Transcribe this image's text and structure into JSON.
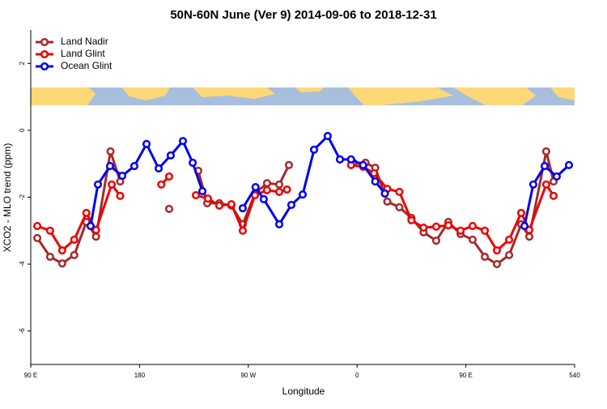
{
  "chart_data": {
    "type": "line",
    "title": "50N-60N June (Ver 9)   2014-09-06 to 2018-12-31",
    "x_label": "Longitude",
    "y_label": "XCO2 - MLO trend (ppm)",
    "xlim": [
      90,
      540
    ],
    "xticks": [
      {
        "value": 90,
        "label": "90 E"
      },
      180,
      {
        "value": 270,
        "label": "90 W"
      },
      {
        "value": 360,
        "label": "0"
      },
      {
        "value": 450,
        "label": "90 E"
      },
      540
    ],
    "ylim": [
      -7,
      3
    ],
    "yticks": [
      -6,
      -4,
      -2,
      0,
      2
    ],
    "legend": "top-left",
    "series": [
      {
        "name": "Land Nadir",
        "color": "#a52a2a",
        "x": [
          95.4,
          106,
          116,
          126,
          136,
          144,
          156,
          164,
          null,
          204.5,
          null,
          228.6,
          236,
          246,
          256,
          265.4,
          275.5,
          285.5,
          295.6,
          303.6,
          null,
          357,
          367,
          375,
          385,
          395,
          405,
          415,
          425.5,
          435.5,
          445.6,
          455.6,
          465.7,
          475.7,
          485.8,
          495.8,
          502.5,
          516.5,
          522.6
        ],
        "values": [
          -3.22,
          -3.78,
          -3.98,
          -3.73,
          -2.74,
          -3.18,
          -0.63,
          -1.53,
          null,
          -2.35,
          null,
          -1.21,
          -2.18,
          -2.18,
          -2.25,
          -2.81,
          -1.89,
          -1.58,
          -1.62,
          -1.04,
          null,
          -0.97,
          -0.97,
          -1.12,
          -2.13,
          -2.3,
          -2.62,
          -3.05,
          -3.3,
          -2.74,
          -3.1,
          -3.27,
          -3.78,
          -4.0,
          -3.73,
          -2.81,
          -3.18,
          -0.63,
          -1.53
        ]
      },
      {
        "name": "Land Glint",
        "color": "#ee0000",
        "x": [
          95.4,
          106,
          116,
          126,
          136,
          144,
          157,
          164,
          null,
          198,
          204.5,
          null,
          226.6,
          236.6,
          246,
          256,
          265.4,
          275.5,
          285.5,
          295.6,
          302,
          null,
          355,
          365,
          374,
          385,
          395,
          405,
          415,
          425.5,
          435.5,
          445.6,
          455.6,
          465.7,
          475.7,
          485.8,
          495.8,
          502.5,
          516.5,
          522.6
        ],
        "values": [
          -2.86,
          -3.0,
          -3.59,
          -3.27,
          -2.47,
          -2.98,
          -1.62,
          -1.96,
          null,
          -1.62,
          -1.38,
          null,
          -1.94,
          -2.04,
          -2.25,
          -2.21,
          -3.0,
          -1.94,
          -1.79,
          -1.84,
          -1.77,
          null,
          -1.04,
          -1.09,
          -1.28,
          -1.75,
          -1.84,
          -2.69,
          -2.91,
          -2.88,
          -2.84,
          -3.0,
          -2.86,
          -3.0,
          -3.59,
          -3.27,
          -2.47,
          -2.98,
          -1.62,
          -1.96
        ]
      },
      {
        "name": "Ocean Glint",
        "color": "#0000ee",
        "x": [
          139.5,
          145.6,
          155.6,
          165.7,
          175.7,
          185.8,
          195.8,
          205.8,
          215.9,
          224,
          232,
          null,
          265.4,
          276,
          282.8,
          295.6,
          305.6,
          315,
          324.4,
          335.7,
          345.8,
          355,
          365,
          375,
          383,
          null,
          498.5,
          505.8,
          515.2,
          525.2,
          535.3
        ],
        "values": [
          -2.86,
          -1.62,
          -1.07,
          -1.36,
          -1.07,
          -0.41,
          -1.14,
          -0.75,
          -0.32,
          -0.97,
          -1.82,
          null,
          -2.33,
          -1.7,
          -2.06,
          -2.81,
          -2.23,
          -1.92,
          -0.58,
          -0.17,
          -0.87,
          -0.87,
          -1.04,
          -1.53,
          -1.89,
          null,
          -2.86,
          -1.62,
          -1.07,
          -1.38,
          -1.04
        ]
      }
    ]
  }
}
